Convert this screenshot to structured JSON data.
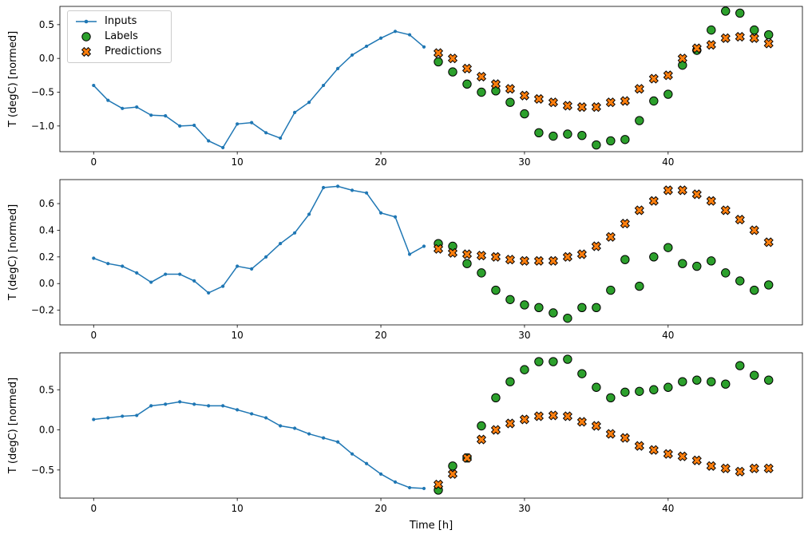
{
  "figure": {
    "xlabel": "Time [h]",
    "ylabel": "T (degC) [normed]",
    "legend": {
      "inputs": "Inputs",
      "labels": "Labels",
      "predictions": "Predictions"
    },
    "colors": {
      "inputs": "#1f77b4",
      "labels": "#2ca02c",
      "predictions": "#ff7f0e",
      "marker_edge": "#000000",
      "axes": "#000000",
      "background": "#ffffff"
    }
  },
  "chart_data": [
    {
      "type": "line",
      "title": "",
      "xlabel": "",
      "ylabel": "T (degC) [normed]",
      "xlim": [
        -2.35,
        49.35
      ],
      "ylim": [
        -1.38,
        0.77
      ],
      "xticks": [
        0,
        10,
        20,
        30,
        40
      ],
      "yticks": [
        -1.0,
        -0.5,
        0.0,
        0.5
      ],
      "grid": false,
      "legend_position": "upper left",
      "series": [
        {
          "name": "Inputs",
          "style": "line",
          "marker": "dot",
          "color": "#1f77b4",
          "x": [
            0,
            1,
            2,
            3,
            4,
            5,
            6,
            7,
            8,
            9,
            10,
            11,
            12,
            13,
            14,
            15,
            16,
            17,
            18,
            19,
            20,
            21,
            22,
            23
          ],
          "y": [
            -0.4,
            -0.62,
            -0.74,
            -0.72,
            -0.84,
            -0.85,
            -1.0,
            -0.99,
            -1.22,
            -1.32,
            -0.97,
            -0.95,
            -1.1,
            -1.18,
            -0.8,
            -0.65,
            -0.4,
            -0.15,
            0.05,
            0.18,
            0.3,
            0.4,
            0.35,
            0.17
          ]
        },
        {
          "name": "Labels",
          "style": "scatter",
          "marker": "o",
          "color": "#2ca02c",
          "x": [
            24,
            25,
            26,
            27,
            28,
            29,
            30,
            31,
            32,
            33,
            34,
            35,
            36,
            37,
            38,
            39,
            40,
            41,
            42,
            43,
            44,
            45,
            46,
            47
          ],
          "y": [
            -0.05,
            -0.2,
            -0.38,
            -0.5,
            -0.48,
            -0.65,
            -0.82,
            -1.1,
            -1.15,
            -1.12,
            -1.14,
            -1.28,
            -1.22,
            -1.2,
            -0.92,
            -0.63,
            -0.53,
            -0.1,
            0.12,
            0.42,
            0.7,
            0.67,
            0.42,
            0.35
          ]
        },
        {
          "name": "Predictions",
          "style": "scatter",
          "marker": "X",
          "color": "#ff7f0e",
          "x": [
            24,
            25,
            26,
            27,
            28,
            29,
            30,
            31,
            32,
            33,
            34,
            35,
            36,
            37,
            38,
            39,
            40,
            41,
            42,
            43,
            44,
            45,
            46,
            47
          ],
          "y": [
            0.08,
            0.0,
            -0.15,
            -0.27,
            -0.38,
            -0.45,
            -0.55,
            -0.6,
            -0.65,
            -0.7,
            -0.72,
            -0.72,
            -0.65,
            -0.63,
            -0.45,
            -0.3,
            -0.25,
            0.0,
            0.15,
            0.2,
            0.3,
            0.32,
            0.3,
            0.22
          ]
        }
      ]
    },
    {
      "type": "line",
      "title": "",
      "xlabel": "",
      "ylabel": "T (degC) [normed]",
      "xlim": [
        -2.35,
        49.35
      ],
      "ylim": [
        -0.31,
        0.78
      ],
      "xticks": [
        0,
        10,
        20,
        30,
        40
      ],
      "yticks": [
        -0.2,
        0.0,
        0.2,
        0.4,
        0.6
      ],
      "grid": false,
      "series": [
        {
          "name": "Inputs",
          "style": "line",
          "marker": "dot",
          "color": "#1f77b4",
          "x": [
            0,
            1,
            2,
            3,
            4,
            5,
            6,
            7,
            8,
            9,
            10,
            11,
            12,
            13,
            14,
            15,
            16,
            17,
            18,
            19,
            20,
            21,
            22,
            23
          ],
          "y": [
            0.19,
            0.15,
            0.13,
            0.08,
            0.01,
            0.07,
            0.07,
            0.02,
            -0.07,
            -0.02,
            0.13,
            0.11,
            0.2,
            0.3,
            0.38,
            0.52,
            0.72,
            0.73,
            0.7,
            0.68,
            0.53,
            0.5,
            0.22,
            0.28
          ]
        },
        {
          "name": "Labels",
          "style": "scatter",
          "marker": "o",
          "color": "#2ca02c",
          "x": [
            24,
            25,
            26,
            27,
            28,
            29,
            30,
            31,
            32,
            33,
            34,
            35,
            36,
            37,
            38,
            39,
            40,
            41,
            42,
            43,
            44,
            45,
            46,
            47
          ],
          "y": [
            0.3,
            0.28,
            0.15,
            0.08,
            -0.05,
            -0.12,
            -0.16,
            -0.18,
            -0.22,
            -0.26,
            -0.18,
            -0.18,
            -0.05,
            0.18,
            -0.02,
            0.2,
            0.27,
            0.15,
            0.13,
            0.17,
            0.08,
            0.02,
            -0.05,
            -0.01
          ]
        },
        {
          "name": "Predictions",
          "style": "scatter",
          "marker": "X",
          "color": "#ff7f0e",
          "x": [
            24,
            25,
            26,
            27,
            28,
            29,
            30,
            31,
            32,
            33,
            34,
            35,
            36,
            37,
            38,
            39,
            40,
            41,
            42,
            43,
            44,
            45,
            46,
            47
          ],
          "y": [
            0.26,
            0.23,
            0.22,
            0.21,
            0.2,
            0.18,
            0.17,
            0.17,
            0.17,
            0.2,
            0.22,
            0.28,
            0.35,
            0.45,
            0.55,
            0.62,
            0.7,
            0.7,
            0.67,
            0.62,
            0.55,
            0.48,
            0.4,
            0.31
          ]
        }
      ]
    },
    {
      "type": "line",
      "title": "",
      "xlabel": "Time [h]",
      "ylabel": "T (degC) [normed]",
      "xlim": [
        -2.35,
        49.35
      ],
      "ylim": [
        -0.85,
        0.96
      ],
      "xticks": [
        0,
        10,
        20,
        30,
        40
      ],
      "yticks": [
        -0.5,
        0.0,
        0.5
      ],
      "grid": false,
      "series": [
        {
          "name": "Inputs",
          "style": "line",
          "marker": "dot",
          "color": "#1f77b4",
          "x": [
            0,
            1,
            2,
            3,
            4,
            5,
            6,
            7,
            8,
            9,
            10,
            11,
            12,
            13,
            14,
            15,
            16,
            17,
            18,
            19,
            20,
            21,
            22,
            23
          ],
          "y": [
            0.13,
            0.15,
            0.17,
            0.18,
            0.3,
            0.32,
            0.35,
            0.32,
            0.3,
            0.3,
            0.25,
            0.2,
            0.15,
            0.05,
            0.02,
            -0.05,
            -0.1,
            -0.15,
            -0.3,
            -0.42,
            -0.55,
            -0.65,
            -0.72,
            -0.73
          ]
        },
        {
          "name": "Labels",
          "style": "scatter",
          "marker": "o",
          "color": "#2ca02c",
          "x": [
            24,
            25,
            26,
            27,
            28,
            29,
            30,
            31,
            32,
            33,
            34,
            35,
            36,
            37,
            38,
            39,
            40,
            41,
            42,
            43,
            44,
            45,
            46,
            47
          ],
          "y": [
            -0.75,
            -0.45,
            -0.35,
            0.05,
            0.4,
            0.6,
            0.75,
            0.85,
            0.85,
            0.88,
            0.7,
            0.53,
            0.4,
            0.47,
            0.48,
            0.5,
            0.53,
            0.6,
            0.62,
            0.6,
            0.57,
            0.8,
            0.68,
            0.62
          ]
        },
        {
          "name": "Predictions",
          "style": "scatter",
          "marker": "X",
          "color": "#ff7f0e",
          "x": [
            24,
            25,
            26,
            27,
            28,
            29,
            30,
            31,
            32,
            33,
            34,
            35,
            36,
            37,
            38,
            39,
            40,
            41,
            42,
            43,
            44,
            45,
            46,
            47
          ],
          "y": [
            -0.68,
            -0.55,
            -0.35,
            -0.12,
            0.0,
            0.08,
            0.13,
            0.17,
            0.18,
            0.17,
            0.1,
            0.05,
            -0.05,
            -0.1,
            -0.2,
            -0.25,
            -0.3,
            -0.33,
            -0.38,
            -0.45,
            -0.48,
            -0.52,
            -0.48,
            -0.48
          ]
        }
      ]
    }
  ]
}
